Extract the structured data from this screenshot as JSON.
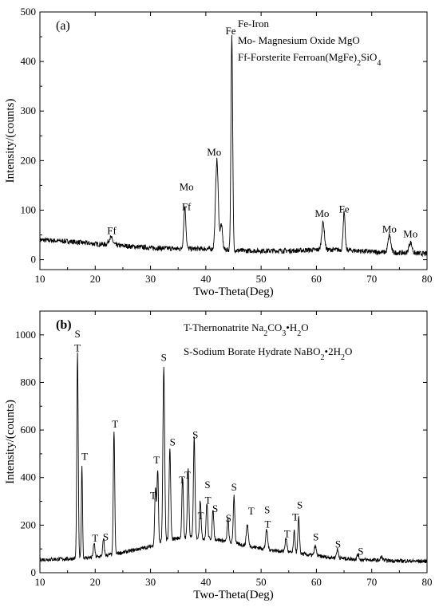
{
  "chart_data": [
    {
      "type": "line",
      "panel_label": "(a)",
      "xlabel": "Two-Theta(Deg)",
      "ylabel": "Intensity/(counts)",
      "xlim": [
        10,
        80
      ],
      "ylim": [
        -20,
        500
      ],
      "x_ticks": [
        10,
        20,
        30,
        40,
        50,
        60,
        70,
        80
      ],
      "y_ticks": [
        0,
        100,
        200,
        300,
        400,
        500
      ],
      "x_tick_labels": [
        "10",
        "20",
        "30",
        "40",
        "50",
        "60",
        "70",
        "80"
      ],
      "y_tick_labels": [
        "0",
        "100",
        "200",
        "300",
        "400",
        "500"
      ],
      "baseline": [
        [
          10,
          40
        ],
        [
          15,
          37
        ],
        [
          20,
          32
        ],
        [
          25,
          28
        ],
        [
          30,
          24
        ],
        [
          35,
          22
        ],
        [
          40,
          22
        ],
        [
          47,
          18
        ],
        [
          55,
          18
        ],
        [
          60,
          20
        ],
        [
          65,
          20
        ],
        [
          70,
          16
        ],
        [
          75,
          14
        ],
        [
          80,
          12
        ]
      ],
      "noise": 5,
      "peaks": [
        {
          "x": 22.8,
          "h": 15,
          "w": 0.5
        },
        {
          "x": 36.2,
          "h": 85,
          "w": 0.28
        },
        {
          "x": 42.0,
          "h": 180,
          "w": 0.35
        },
        {
          "x": 42.8,
          "h": 50,
          "w": 0.3
        },
        {
          "x": 44.7,
          "h": 430,
          "w": 0.22
        },
        {
          "x": 61.2,
          "h": 55,
          "w": 0.35
        },
        {
          "x": 65.0,
          "h": 75,
          "w": 0.25
        },
        {
          "x": 73.2,
          "h": 35,
          "w": 0.35
        },
        {
          "x": 77.0,
          "h": 22,
          "w": 0.4
        }
      ],
      "peak_labels": [
        {
          "text": "Ff",
          "x": 23.0,
          "y": 52
        },
        {
          "text": "Ff",
          "x": 36.5,
          "y": 100
        },
        {
          "text": "Mo",
          "x": 36.5,
          "y": 140
        },
        {
          "text": "Mo",
          "x": 41.5,
          "y": 210
        },
        {
          "text": "Fe",
          "x": 44.5,
          "y": 455
        },
        {
          "text": "Mo",
          "x": 61.0,
          "y": 86
        },
        {
          "text": "Fe",
          "x": 65.0,
          "y": 95
        },
        {
          "text": "Mo",
          "x": 73.2,
          "y": 55
        },
        {
          "text": "Mo",
          "x": 77.0,
          "y": 45
        }
      ],
      "legend": [
        {
          "text": "Fe-Iron"
        },
        {
          "text": "Mo- Magnesium  Oxide MgO"
        },
        {
          "text": "Ff-Forsterite Ferroan(Mg",
          "sub": "",
          "tail": "Fe)",
          "sub2": "2",
          "tail2": "SiO",
          "sub3": "4"
        }
      ]
    },
    {
      "type": "line",
      "panel_label": "(b)",
      "xlabel": "Two-Theta(Deg)",
      "ylabel": "Intensity/(counts)",
      "xlim": [
        10,
        80
      ],
      "ylim": [
        0,
        1100
      ],
      "x_ticks": [
        10,
        20,
        30,
        40,
        50,
        60,
        70,
        80
      ],
      "y_ticks": [
        0,
        200,
        400,
        600,
        800,
        1000
      ],
      "x_tick_labels": [
        "10",
        "20",
        "30",
        "40",
        "50",
        "60",
        "70",
        "80"
      ],
      "y_tick_labels": [
        "0",
        "200",
        "400",
        "600",
        "800",
        "1000"
      ],
      "baseline": [
        [
          10,
          55
        ],
        [
          15,
          58
        ],
        [
          20,
          65
        ],
        [
          25,
          85
        ],
        [
          30,
          110
        ],
        [
          33,
          140
        ],
        [
          37,
          150
        ],
        [
          42,
          140
        ],
        [
          47,
          115
        ],
        [
          52,
          95
        ],
        [
          57,
          80
        ],
        [
          62,
          65
        ],
        [
          68,
          55
        ],
        [
          74,
          50
        ],
        [
          80,
          48
        ]
      ],
      "noise": 8,
      "peaks": [
        {
          "x": 16.8,
          "h": 860,
          "w": 0.18
        },
        {
          "x": 17.6,
          "h": 390,
          "w": 0.15
        },
        {
          "x": 19.8,
          "h": 60,
          "w": 0.2
        },
        {
          "x": 21.5,
          "h": 70,
          "w": 0.2
        },
        {
          "x": 23.4,
          "h": 520,
          "w": 0.18
        },
        {
          "x": 30.9,
          "h": 240,
          "w": 0.2
        },
        {
          "x": 31.3,
          "h": 310,
          "w": 0.18
        },
        {
          "x": 32.4,
          "h": 730,
          "w": 0.22
        },
        {
          "x": 33.5,
          "h": 380,
          "w": 0.2
        },
        {
          "x": 35.8,
          "h": 250,
          "w": 0.2
        },
        {
          "x": 36.8,
          "h": 290,
          "w": 0.2
        },
        {
          "x": 37.9,
          "h": 420,
          "w": 0.2
        },
        {
          "x": 39.0,
          "h": 160,
          "w": 0.2
        },
        {
          "x": 40.2,
          "h": 150,
          "w": 0.2
        },
        {
          "x": 41.3,
          "h": 120,
          "w": 0.2
        },
        {
          "x": 44.0,
          "h": 95,
          "w": 0.2
        },
        {
          "x": 45.1,
          "h": 200,
          "w": 0.2
        },
        {
          "x": 47.5,
          "h": 90,
          "w": 0.25
        },
        {
          "x": 51.0,
          "h": 80,
          "w": 0.25
        },
        {
          "x": 54.5,
          "h": 55,
          "w": 0.25
        },
        {
          "x": 56.0,
          "h": 90,
          "w": 0.2
        },
        {
          "x": 56.8,
          "h": 150,
          "w": 0.2
        },
        {
          "x": 59.8,
          "h": 40,
          "w": 0.25
        },
        {
          "x": 63.8,
          "h": 35,
          "w": 0.25
        },
        {
          "x": 67.5,
          "h": 20,
          "w": 0.25
        },
        {
          "x": 71.8,
          "h": 15,
          "w": 0.25
        }
      ],
      "peak_labels": [
        {
          "text": "T",
          "x": 16.8,
          "y": 930
        },
        {
          "text": "S",
          "x": 16.8,
          "y": 990
        },
        {
          "text": "T",
          "x": 18.1,
          "y": 475
        },
        {
          "text": "T",
          "x": 20.0,
          "y": 130
        },
        {
          "text": "S",
          "x": 21.9,
          "y": 135
        },
        {
          "text": "T",
          "x": 23.6,
          "y": 610
        },
        {
          "text": "T",
          "x": 30.5,
          "y": 310
        },
        {
          "text": "T",
          "x": 31.1,
          "y": 460
        },
        {
          "text": "S",
          "x": 32.4,
          "y": 890
        },
        {
          "text": "S",
          "x": 34.0,
          "y": 535
        },
        {
          "text": "T",
          "x": 35.7,
          "y": 375
        },
        {
          "text": "T",
          "x": 36.7,
          "y": 395
        },
        {
          "text": "S",
          "x": 38.1,
          "y": 565
        },
        {
          "text": "T",
          "x": 39.1,
          "y": 225
        },
        {
          "text": "S",
          "x": 40.3,
          "y": 355
        },
        {
          "text": "T",
          "x": 40.4,
          "y": 290
        },
        {
          "text": "S",
          "x": 41.7,
          "y": 255
        },
        {
          "text": "S",
          "x": 44.1,
          "y": 215
        },
        {
          "text": "S",
          "x": 45.1,
          "y": 345
        },
        {
          "text": "T",
          "x": 48.2,
          "y": 245
        },
        {
          "text": "S",
          "x": 51.1,
          "y": 250
        },
        {
          "text": "T",
          "x": 51.2,
          "y": 190
        },
        {
          "text": "T",
          "x": 54.7,
          "y": 150
        },
        {
          "text": "T",
          "x": 56.2,
          "y": 220
        },
        {
          "text": "S",
          "x": 57.0,
          "y": 270
        },
        {
          "text": "S",
          "x": 59.9,
          "y": 135
        },
        {
          "text": "S",
          "x": 63.9,
          "y": 105
        },
        {
          "text": "S",
          "x": 68.0,
          "y": 75
        }
      ],
      "legend": [
        {
          "text": "T-Thernonatrite Na",
          "sub": "2",
          "tail": "CO",
          "sub2": "3",
          "tail2": "•H",
          "sub3": "2",
          "tail3": "O"
        },
        {
          "text": "S-Sodium Borate Hydrate NaBO",
          "sub": "2",
          "tail": "•2H",
          "sub2": "2",
          "tail2": "O"
        }
      ]
    }
  ]
}
